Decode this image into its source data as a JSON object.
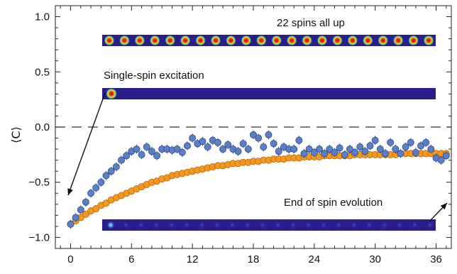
{
  "chart_data": {
    "type": "scatter",
    "title": "",
    "xlabel": "",
    "ylabel": "⟨C⟩",
    "xlim": [
      -1.5,
      37.5
    ],
    "ylim": [
      -1.1,
      1.1
    ],
    "x_ticks": [
      0,
      6,
      12,
      18,
      24,
      30,
      36
    ],
    "x_tick_labels": [
      "0",
      "6",
      "12",
      "18",
      "24",
      "30",
      "36"
    ],
    "y_ticks": [
      1.0,
      0.5,
      0.0,
      -0.5,
      -1.0
    ],
    "y_tick_labels": [
      "1.0",
      "0.5",
      "0.0",
      "−0.5",
      "−1.0"
    ],
    "reference_line": {
      "y": 0.0,
      "style": "dashed"
    },
    "grid": false,
    "annotations": {
      "all_up": "22 spins all up",
      "single_spin": "Single-spin excitation",
      "end_evolution": "End of spin evolution"
    },
    "colors": {
      "experiment": "#5b7fc7",
      "simulation": "#f39a1e",
      "heatmap_background": "#2a1d8c",
      "heatmap_hot": "#c81414"
    },
    "series": [
      {
        "marker": "circle-with-errorbar",
        "x": [
          0,
          0.5,
          1,
          1.5,
          2,
          2.5,
          3,
          3.5,
          4,
          4.5,
          5,
          5.5,
          6,
          6.5,
          7,
          7.5,
          8,
          8.5,
          9,
          9.5,
          10,
          10.5,
          11,
          11.5,
          12,
          12.5,
          13,
          13.5,
          14,
          14.5,
          15,
          15.5,
          16,
          16.5,
          17,
          17.5,
          18,
          18.5,
          19,
          19.5,
          20,
          20.5,
          21,
          21.5,
          22,
          22.5,
          23,
          23.5,
          24,
          24.5,
          25,
          25.5,
          26,
          26.5,
          27,
          27.5,
          28,
          28.5,
          29,
          29.5,
          30,
          30.5,
          31,
          31.5,
          32,
          32.5,
          33,
          33.5,
          34,
          34.5,
          35,
          35.5,
          36,
          36.5,
          37
        ],
        "y": [
          -0.88,
          -0.82,
          -0.75,
          -0.68,
          -0.6,
          -0.55,
          -0.5,
          -0.44,
          -0.4,
          -0.36,
          -0.3,
          -0.26,
          -0.22,
          -0.2,
          -0.25,
          -0.18,
          -0.22,
          -0.26,
          -0.2,
          -0.2,
          -0.21,
          -0.2,
          -0.23,
          -0.17,
          -0.1,
          -0.15,
          -0.13,
          -0.18,
          -0.12,
          -0.14,
          -0.2,
          -0.16,
          -0.2,
          -0.22,
          -0.15,
          -0.2,
          -0.07,
          -0.1,
          -0.18,
          -0.07,
          -0.15,
          -0.22,
          -0.18,
          -0.2,
          -0.2,
          -0.12,
          -0.24,
          -0.2,
          -0.23,
          -0.2,
          -0.24,
          -0.2,
          -0.23,
          -0.19,
          -0.25,
          -0.2,
          -0.23,
          -0.18,
          -0.22,
          -0.17,
          -0.12,
          -0.2,
          -0.24,
          -0.14,
          -0.2,
          -0.24,
          -0.18,
          -0.14,
          -0.23,
          -0.17,
          -0.14,
          -0.2,
          -0.28,
          -0.3,
          -0.26
        ],
        "error": 0.04
      },
      {
        "marker": "circle",
        "x": [
          0,
          0.5,
          1,
          1.5,
          2,
          2.5,
          3,
          3.5,
          4,
          4.5,
          5,
          5.5,
          6,
          6.5,
          7,
          7.5,
          8,
          8.5,
          9,
          9.5,
          10,
          10.5,
          11,
          11.5,
          12,
          12.5,
          13,
          13.5,
          14,
          14.5,
          15,
          15.5,
          16,
          16.5,
          17,
          17.5,
          18,
          18.5,
          19,
          19.5,
          20,
          20.5,
          21,
          21.5,
          22,
          22.5,
          23,
          23.5,
          24,
          24.5,
          25,
          25.5,
          26,
          26.5,
          27,
          27.5,
          28,
          28.5,
          29,
          29.5,
          30,
          30.5,
          31,
          31.5,
          32,
          32.5,
          33,
          33.5,
          34,
          34.5,
          35,
          35.5,
          36,
          36.5,
          37
        ],
        "y": [
          -0.88,
          -0.85,
          -0.82,
          -0.79,
          -0.76,
          -0.74,
          -0.71,
          -0.69,
          -0.66,
          -0.64,
          -0.62,
          -0.6,
          -0.58,
          -0.56,
          -0.54,
          -0.52,
          -0.5,
          -0.49,
          -0.47,
          -0.46,
          -0.44,
          -0.43,
          -0.42,
          -0.41,
          -0.4,
          -0.39,
          -0.38,
          -0.37,
          -0.36,
          -0.35,
          -0.35,
          -0.34,
          -0.33,
          -0.33,
          -0.32,
          -0.32,
          -0.31,
          -0.31,
          -0.3,
          -0.3,
          -0.29,
          -0.29,
          -0.29,
          -0.28,
          -0.28,
          -0.28,
          -0.27,
          -0.27,
          -0.27,
          -0.27,
          -0.26,
          -0.26,
          -0.26,
          -0.26,
          -0.26,
          -0.26,
          -0.25,
          -0.25,
          -0.25,
          -0.25,
          -0.25,
          -0.25,
          -0.25,
          -0.25,
          -0.25,
          -0.24,
          -0.24,
          -0.24,
          -0.24,
          -0.24,
          -0.24,
          -0.24,
          -0.24,
          -0.24,
          -0.24
        ]
      }
    ],
    "insets": [
      {
        "caption": "22 spins all up",
        "spots": 22,
        "intensity": 1.0
      },
      {
        "caption": "Single-spin excitation",
        "spots": 1,
        "intensity": 1.0
      },
      {
        "caption": "End of spin evolution",
        "spots": 22,
        "intensity": 0.25
      }
    ]
  }
}
